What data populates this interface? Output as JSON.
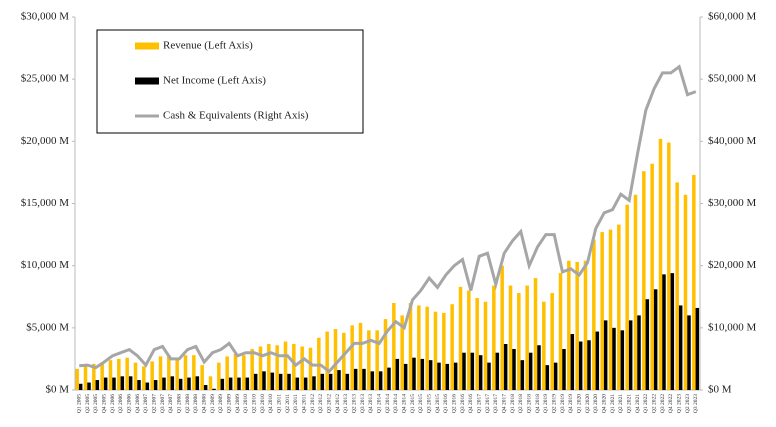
{
  "chart_data": {
    "type": "bar",
    "categories": [
      "Q1 2005",
      "Q2 2005",
      "Q3 2005",
      "Q4 2005",
      "Q1 2006",
      "Q2 2006",
      "Q3 2006",
      "Q4 2006",
      "Q1 2007",
      "Q2 2007",
      "Q3 2007",
      "Q4 2007",
      "Q1 2008",
      "Q2 2008",
      "Q3 2008",
      "Q4 2008",
      "Q1 2009",
      "Q2 2009",
      "Q3 2009",
      "Q4 2009",
      "Q1 2010",
      "Q2 2010",
      "Q3 2010",
      "Q4 2010",
      "Q1 2011",
      "Q2 2011",
      "Q3 2011",
      "Q4 2011",
      "Q1 2012",
      "Q2 2012",
      "Q3 2012",
      "Q4 2012",
      "Q1 2013",
      "Q2 2013",
      "Q3 2013",
      "Q4 2013",
      "Q1 2014",
      "Q2 2014",
      "Q3 2014",
      "Q4 2014",
      "Q1 2015",
      "Q2 2015",
      "Q3 2015",
      "Q4 2015",
      "Q1 2016",
      "Q2 2016",
      "Q3 2016",
      "Q4 2016",
      "Q1 2017",
      "Q2 2017",
      "Q3 2017",
      "Q4 2017",
      "Q1 2018",
      "Q2 2018",
      "Q3 2018",
      "Q4 2018",
      "Q1 2019",
      "Q2 2019",
      "Q3 2019",
      "Q4 2019",
      "Q1 2020",
      "Q2 2020",
      "Q3 2020",
      "Q4 2020",
      "Q1 2021",
      "Q2 2021",
      "Q3 2021",
      "Q4 2021",
      "Q1 2022",
      "Q2 2022",
      "Q3 2022",
      "Q4 2022",
      "Q1 2023",
      "Q2 2023",
      "Q3 2023"
    ],
    "series": [
      {
        "name": "Revenue (Left Axis)",
        "color": "#ffc000",
        "values": [
          1700,
          1900,
          2100,
          2200,
          2400,
          2500,
          2600,
          2200,
          1900,
          2300,
          2700,
          2800,
          2600,
          2800,
          2800,
          2000,
          1100,
          2200,
          2700,
          2900,
          2800,
          3300,
          3500,
          3700,
          3600,
          3900,
          3700,
          3500,
          3400,
          4200,
          4700,
          4900,
          4600,
          5200,
          5400,
          4800,
          4800,
          5700,
          7000,
          6000,
          7000,
          6800,
          6700,
          6300,
          6200,
          6900,
          8300,
          8000,
          7400,
          7100,
          8400,
          10000,
          8400,
          7800,
          8400,
          9000,
          7100,
          7800,
          9400,
          10400,
          10300,
          10400,
          12100,
          12700,
          12900,
          13300,
          14900,
          15700,
          17600,
          18200,
          20200,
          19900,
          16700,
          15700,
          17300
        ]
      },
      {
        "name": "Net Income (Left Axis)",
        "color": "#000000",
        "values": [
          500,
          600,
          800,
          1000,
          1000,
          1100,
          1100,
          800,
          600,
          800,
          1000,
          1100,
          900,
          1000,
          1100,
          400,
          100,
          900,
          1000,
          1000,
          1000,
          1300,
          1500,
          1400,
          1300,
          1300,
          1000,
          1000,
          1100,
          1300,
          1300,
          1600,
          1300,
          1700,
          1700,
          1500,
          1500,
          1800,
          2500,
          2100,
          2600,
          2500,
          2400,
          2200,
          2100,
          2200,
          3000,
          3000,
          2800,
          2200,
          3000,
          3700,
          3300,
          2400,
          3000,
          3600,
          2000,
          2200,
          3300,
          4500,
          3900,
          4000,
          4700,
          5600,
          5000,
          4800,
          5600,
          6000,
          7300,
          8100,
          9300,
          9400,
          6800,
          6000,
          6600
        ]
      },
      {
        "name": "Cash & Equivalents (Right Axis)",
        "color": "#a6a6a6",
        "axis": "y2",
        "values": [
          3900,
          4000,
          3600,
          4500,
          5500,
          6000,
          6500,
          5500,
          4000,
          6500,
          7000,
          5000,
          5000,
          6500,
          7000,
          4500,
          6000,
          6500,
          7500,
          5500,
          6000,
          6000,
          5500,
          6000,
          5500,
          5500,
          4000,
          5000,
          4000,
          4000,
          3000,
          4500,
          6000,
          7500,
          7500,
          8000,
          7500,
          9500,
          11000,
          10000,
          14500,
          16000,
          18000,
          16500,
          18500,
          20000,
          21000,
          16000,
          21500,
          22000,
          17000,
          22000,
          24000,
          25500,
          20000,
          23000,
          25000,
          25000,
          19000,
          19500,
          18500,
          20500,
          26000,
          28500,
          29000,
          31500,
          30500,
          38000,
          45000,
          48500,
          51000,
          51000,
          52000,
          47500,
          48000
        ]
      }
    ],
    "ylim": [
      0,
      30000
    ],
    "yticks": [
      {
        "value": 0,
        "label": "$0 M"
      },
      {
        "value": 5000,
        "label": "$5,000 M"
      },
      {
        "value": 10000,
        "label": "$10,000 M"
      },
      {
        "value": 15000,
        "label": "$15,000 M"
      },
      {
        "value": 20000,
        "label": "$20,000 M"
      },
      {
        "value": 25000,
        "label": "$25,000 M"
      },
      {
        "value": 30000,
        "label": "$30,000 M"
      }
    ],
    "y2lim": [
      0,
      60000
    ],
    "y2ticks": [
      {
        "value": 0,
        "label": "$0 M"
      },
      {
        "value": 10000,
        "label": "$10,000 M"
      },
      {
        "value": 20000,
        "label": "$20,000 M"
      },
      {
        "value": 30000,
        "label": "$30,000 M"
      },
      {
        "value": 40000,
        "label": "$40,000 M"
      },
      {
        "value": 50000,
        "label": "$50,000 M"
      },
      {
        "value": 60000,
        "label": "$60,000 M"
      }
    ],
    "legend": "upper left"
  }
}
